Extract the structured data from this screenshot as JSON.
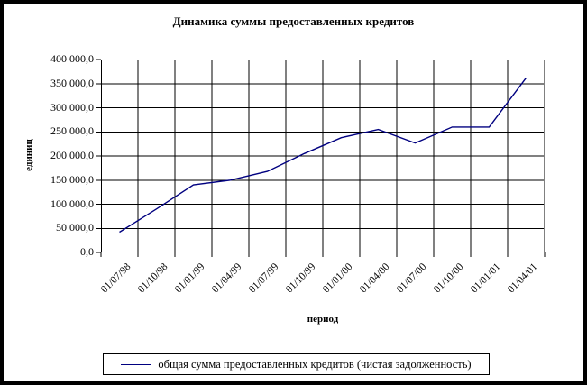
{
  "window": {
    "background_color": "#ffffff",
    "frame_border_color": "#000000"
  },
  "chart": {
    "title": "Динамика суммы предоставленных кредитов",
    "x_axis_title": "период",
    "y_axis_title": "единиц",
    "line_color": "#000080",
    "grid_color": "#000000",
    "plot_border_color": "#808080"
  },
  "legend": {
    "label": "общая сумма предоставленных кредитов (чистая задолженность)"
  },
  "chart_data": {
    "type": "line",
    "title": "Динамика суммы предоставленных кредитов",
    "xlabel": "период",
    "ylabel": "единиц",
    "categories": [
      "01/07/98",
      "01/10/98",
      "01/01/99",
      "01/04/99",
      "01/07/99",
      "01/10/99",
      "01/01/00",
      "01/04/00",
      "01/07/00",
      "01/10/00",
      "01/01/01",
      "01/04/01"
    ],
    "series": [
      {
        "name": "общая сумма предоставленных кредитов (чистая задолженность)",
        "color": "#000080",
        "values": [
          42000,
          90000,
          140000,
          150000,
          168000,
          205000,
          238000,
          255000,
          227000,
          260000,
          260000,
          362000
        ]
      }
    ],
    "ylim": [
      0,
      400000
    ],
    "y_tick_step": 50000,
    "y_tick_labels": [
      "0,0",
      "50 000,0",
      "100 000,0",
      "150 000,0",
      "200 000,0",
      "250 000,0",
      "300 000,0",
      "350 000,0",
      "400 000,0"
    ],
    "grid": true,
    "legend_position": "bottom"
  }
}
